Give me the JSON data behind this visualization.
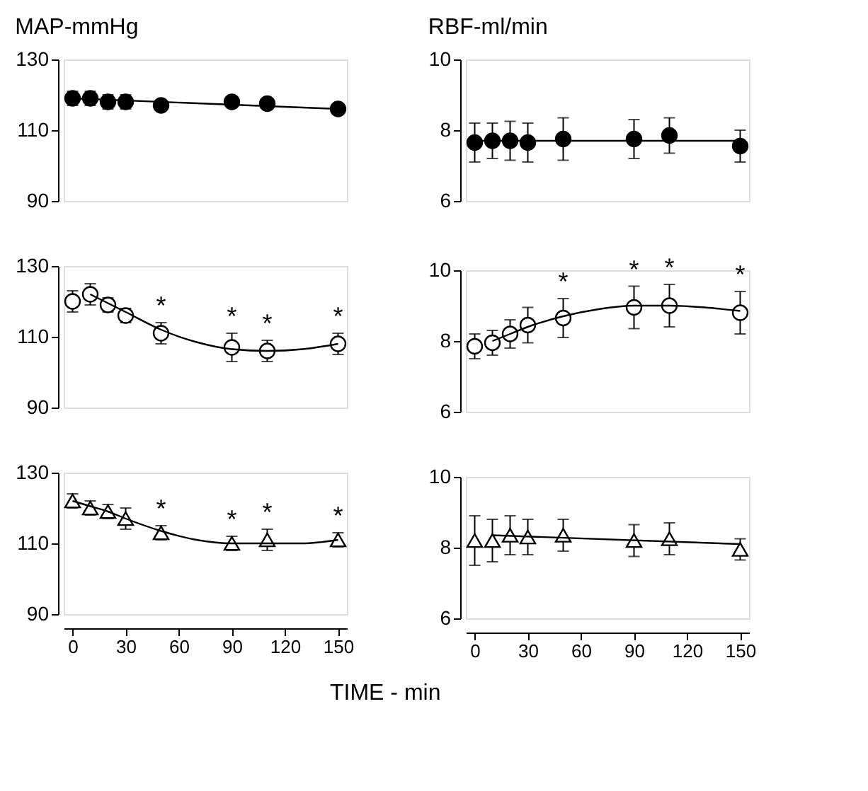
{
  "chart_data": [
    {
      "type": "scatter",
      "title": "MAP-mmHg",
      "x": [
        0,
        10,
        20,
        30,
        50,
        90,
        110,
        150
      ],
      "xlim": [
        -5,
        155
      ],
      "ylim": [
        90,
        130
      ],
      "yticks": [
        90,
        110,
        130
      ],
      "tick_labels": "y",
      "series": [
        {
          "type": "scatter",
          "marker": "circle",
          "color": "#000000",
          "values": [
            119,
            119,
            118,
            118,
            117,
            118,
            117.5,
            116
          ],
          "errors": [
            2,
            2,
            2,
            2,
            1,
            1,
            1,
            1
          ]
        },
        {
          "type": "line",
          "line_style": "solid",
          "color": "#000000",
          "x": [
            0,
            150
          ],
          "values": [
            119,
            116
          ]
        }
      ]
    },
    {
      "type": "scatter",
      "title": "RBF-ml/min",
      "x": [
        0,
        10,
        20,
        30,
        50,
        90,
        110,
        150
      ],
      "xlim": [
        -5,
        155
      ],
      "ylim": [
        6,
        10
      ],
      "yticks": [
        6,
        8,
        10
      ],
      "tick_labels": "y",
      "series": [
        {
          "type": "scatter",
          "marker": "circle",
          "color": "#000000",
          "values": [
            7.65,
            7.7,
            7.7,
            7.65,
            7.75,
            7.75,
            7.85,
            7.55
          ],
          "errors": [
            0.55,
            0.5,
            0.55,
            0.55,
            0.6,
            0.55,
            0.5,
            0.45
          ]
        },
        {
          "type": "line",
          "line_style": "solid",
          "color": "#000000",
          "x": [
            0,
            150
          ],
          "values": [
            7.7,
            7.7
          ]
        }
      ]
    },
    {
      "type": "scatter",
      "x": [
        0,
        10,
        20,
        30,
        50,
        90,
        110,
        150
      ],
      "xlim": [
        -5,
        155
      ],
      "ylim": [
        90,
        130
      ],
      "yticks": [
        90,
        110,
        130
      ],
      "tick_labels": "y",
      "annotations": [
        {
          "text": "*",
          "x": 50,
          "y": 114
        },
        {
          "text": "*",
          "x": 90,
          "y": 111
        },
        {
          "text": "*",
          "x": 110,
          "y": 109
        },
        {
          "text": "*",
          "x": 150,
          "y": 111
        }
      ],
      "series": [
        {
          "type": "scatter",
          "marker": "circle",
          "color": "#000000",
          "values": [
            120,
            122,
            119,
            116,
            111,
            107,
            106,
            108
          ],
          "errors": [
            3,
            3,
            2,
            2,
            3,
            4,
            3,
            3
          ]
        },
        {
          "type": "line",
          "line_style": "solid",
          "color": "#000000",
          "x": [
            10,
            20,
            30,
            50,
            70,
            90,
            110,
            130,
            150
          ],
          "values": [
            122,
            119.5,
            117,
            112,
            108.5,
            106.5,
            106,
            106.5,
            108
          ]
        }
      ]
    },
    {
      "type": "scatter",
      "x": [
        0,
        10,
        20,
        30,
        50,
        90,
        110,
        150
      ],
      "xlim": [
        -5,
        155
      ],
      "ylim": [
        6,
        10
      ],
      "yticks": [
        6,
        8,
        10
      ],
      "tick_labels": "y",
      "annotations": [
        {
          "text": "*",
          "x": 50,
          "y": 9.2
        },
        {
          "text": "*",
          "x": 90,
          "y": 9.55
        },
        {
          "text": "*",
          "x": 110,
          "y": 9.6
        },
        {
          "text": "*",
          "x": 150,
          "y": 9.4
        }
      ],
      "series": [
        {
          "type": "scatter",
          "marker": "circle",
          "color": "#000000",
          "values": [
            7.85,
            7.95,
            8.2,
            8.45,
            8.65,
            8.95,
            9.0,
            8.8
          ],
          "errors": [
            0.35,
            0.35,
            0.4,
            0.5,
            0.55,
            0.6,
            0.6,
            0.6
          ]
        },
        {
          "type": "line",
          "line_style": "solid",
          "color": "#000000",
          "x": [
            10,
            20,
            30,
            50,
            70,
            90,
            110,
            130,
            150
          ],
          "values": [
            8.0,
            8.2,
            8.4,
            8.7,
            8.9,
            9.0,
            9.0,
            8.95,
            8.85
          ]
        }
      ]
    },
    {
      "type": "scatter",
      "x": [
        0,
        10,
        20,
        30,
        50,
        90,
        110,
        150
      ],
      "xlim": [
        -5,
        155
      ],
      "xticks": [
        0,
        30,
        60,
        90,
        120,
        150
      ],
      "ylim": [
        90,
        130
      ],
      "yticks": [
        90,
        110,
        130
      ],
      "annotations": [
        {
          "text": "*",
          "x": 50,
          "y": 115
        },
        {
          "text": "*",
          "x": 90,
          "y": 112
        },
        {
          "text": "*",
          "x": 110,
          "y": 114
        },
        {
          "text": "*",
          "x": 150,
          "y": 113
        }
      ],
      "series": [
        {
          "type": "scatter",
          "marker": "triangle",
          "color": "#000000",
          "values": [
            122,
            120,
            119,
            117,
            113,
            110,
            111,
            111
          ],
          "errors": [
            2,
            2,
            2,
            3,
            2,
            2,
            3,
            2
          ]
        },
        {
          "type": "line",
          "line_style": "solid",
          "color": "#000000",
          "x": [
            0,
            10,
            20,
            30,
            50,
            70,
            90,
            110,
            130,
            150
          ],
          "values": [
            122,
            120.5,
            119,
            117,
            113.5,
            111,
            110,
            110,
            110,
            111
          ]
        }
      ]
    },
    {
      "type": "scatter",
      "xlabel": "TIME  -  min",
      "x": [
        0,
        10,
        20,
        30,
        50,
        90,
        110,
        150
      ],
      "xlim": [
        -5,
        155
      ],
      "xticks": [
        0,
        30,
        60,
        90,
        120,
        150
      ],
      "ylim": [
        6,
        10
      ],
      "yticks": [
        6,
        8,
        10
      ],
      "series": [
        {
          "type": "scatter",
          "marker": "triangle",
          "color": "#000000",
          "values": [
            8.2,
            8.2,
            8.35,
            8.3,
            8.35,
            8.2,
            8.25,
            7.95
          ],
          "errors": [
            0.7,
            0.6,
            0.55,
            0.5,
            0.45,
            0.45,
            0.45,
            0.3
          ]
        },
        {
          "type": "line",
          "line_style": "solid",
          "color": "#000000",
          "x": [
            10,
            150
          ],
          "values": [
            8.35,
            8.1
          ]
        }
      ]
    }
  ]
}
